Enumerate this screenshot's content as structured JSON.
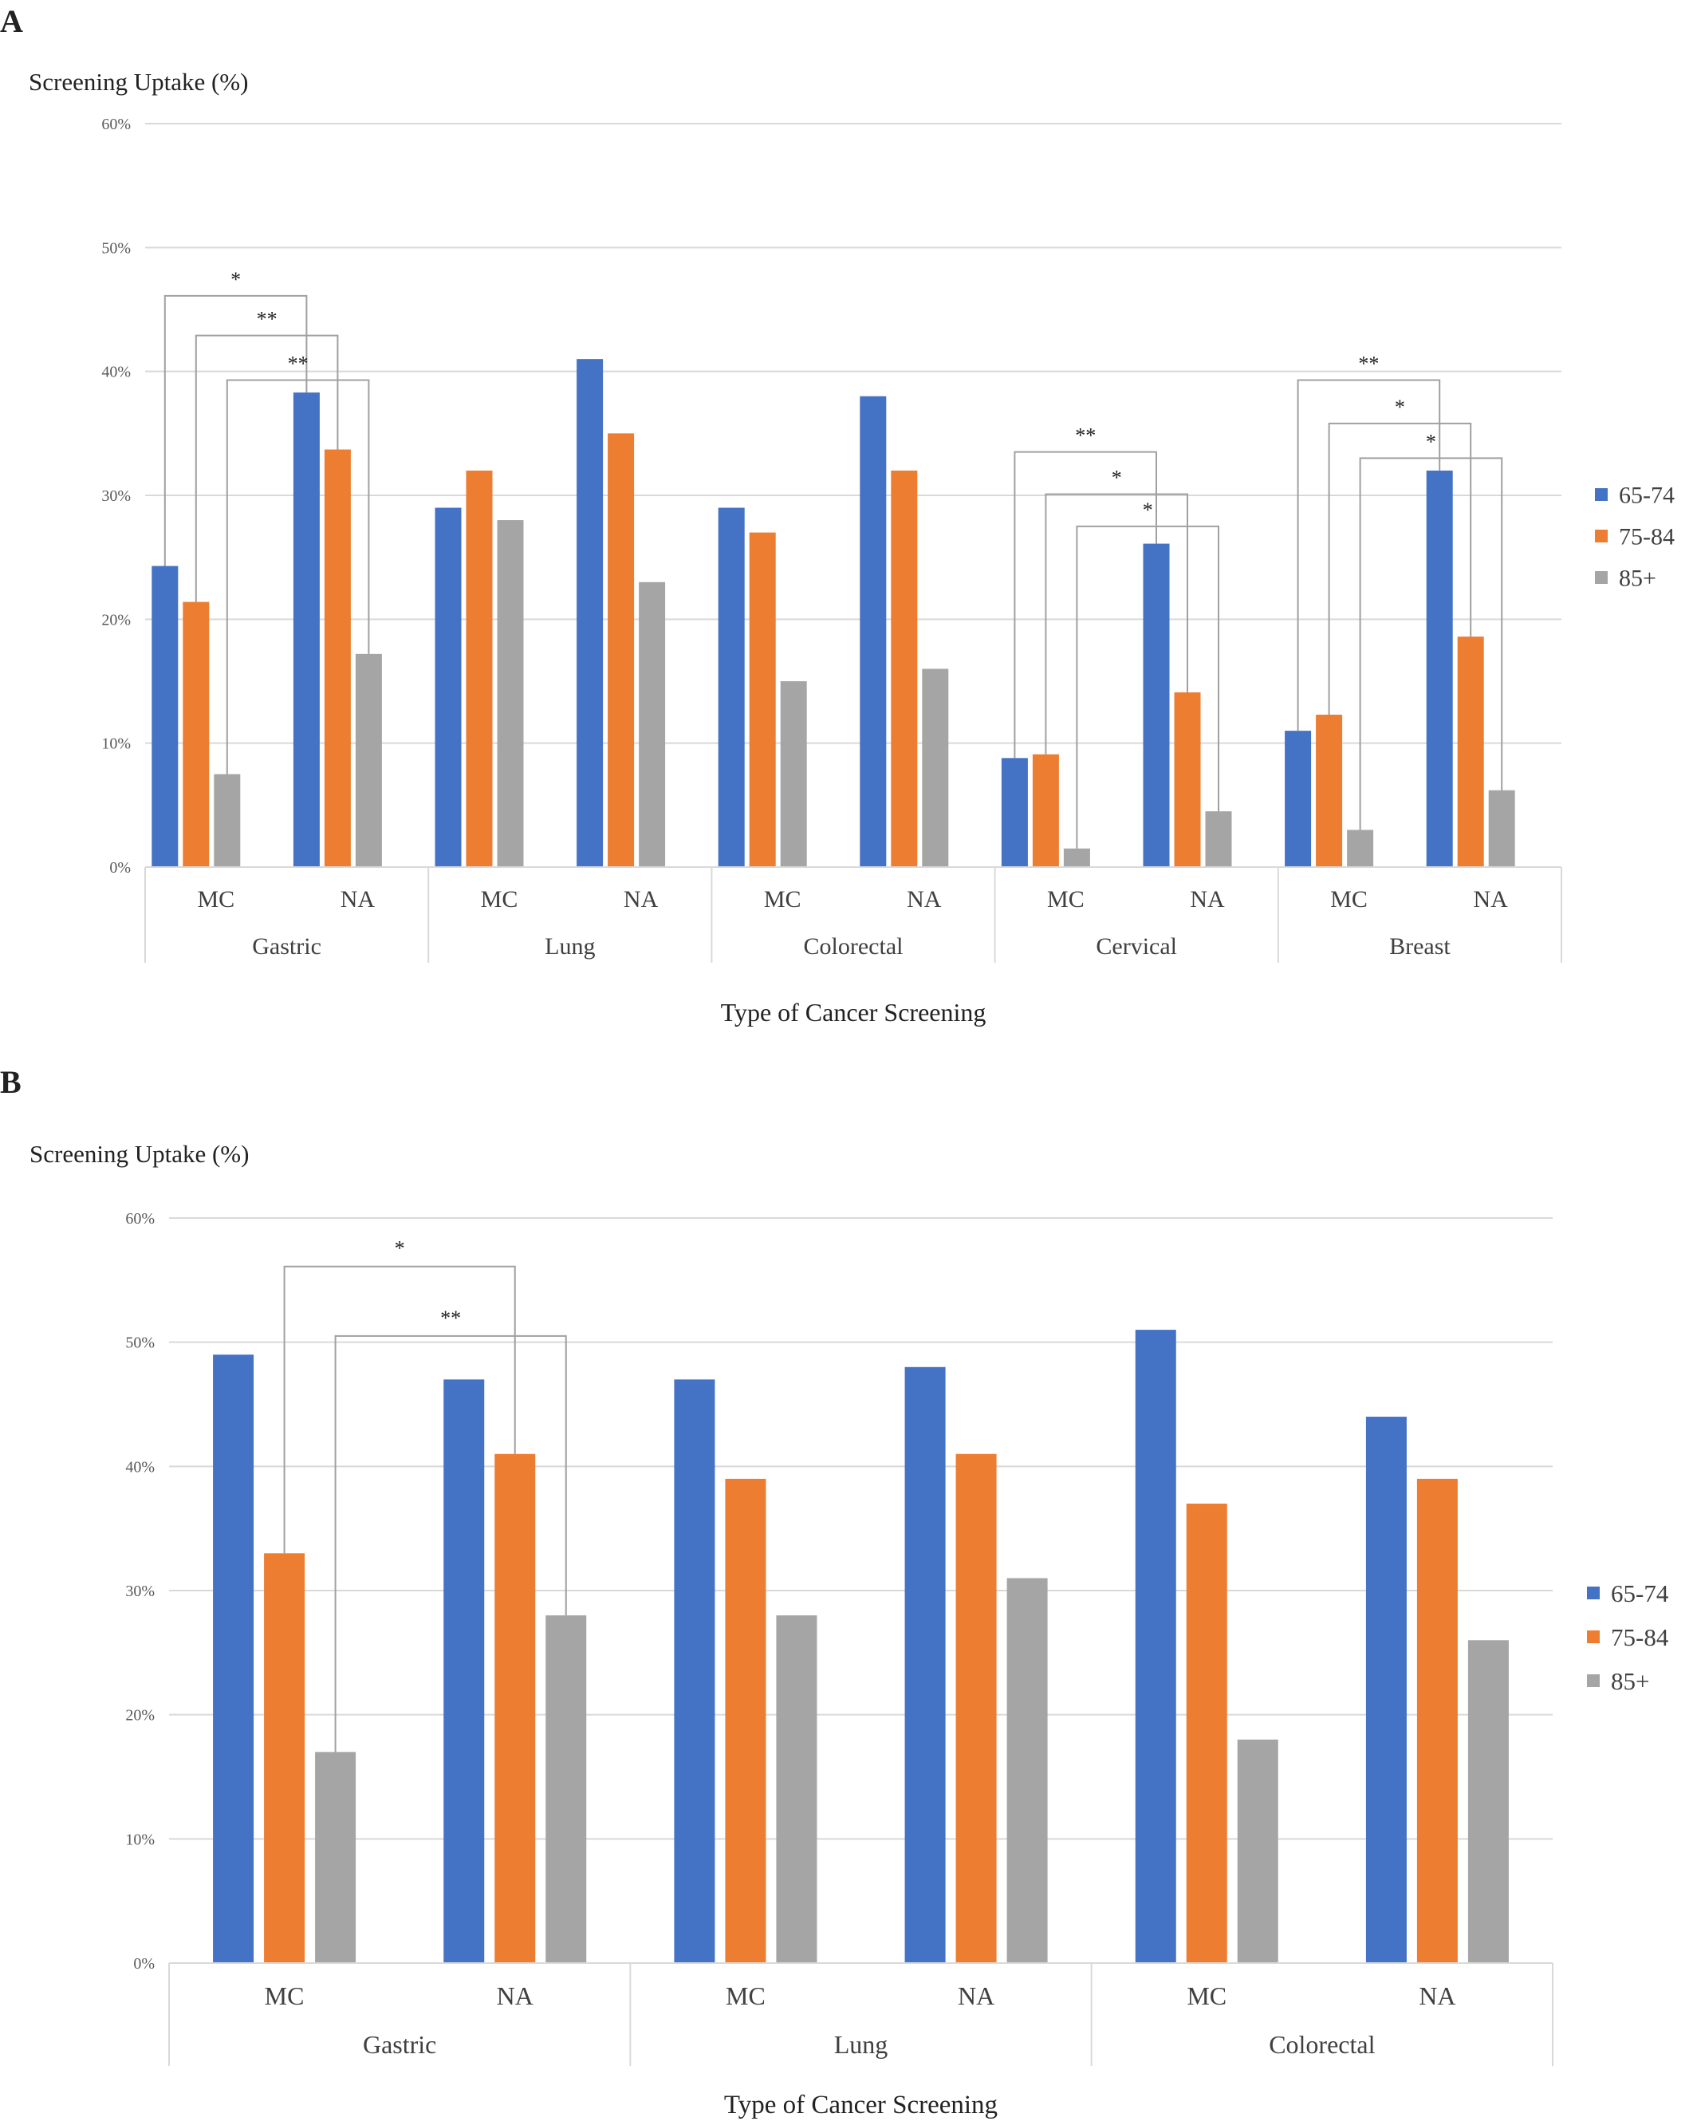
{
  "colors": {
    "series_65_74": "#4472C4",
    "series_75_84": "#ED7D31",
    "series_85_plus": "#A5A5A5",
    "grid": "#D9D9D9",
    "bracket": "#A0A0A0",
    "text": "#222222",
    "tick_text": "#595959"
  },
  "chart_data": [
    {
      "panel_label": "A",
      "type": "bar",
      "ylabel": "Screening Uptake (%)",
      "xlabel": "Type of Cancer Screening",
      "ylim": [
        0,
        60
      ],
      "yticks": [
        "0%",
        "10%",
        "20%",
        "30%",
        "40%",
        "50%",
        "60%"
      ],
      "grid": true,
      "legend_position": "right",
      "groups": [
        "Gastric",
        "Lung",
        "Colorectal",
        "Cervical",
        "Breast"
      ],
      "subcategories": [
        "MC",
        "NA"
      ],
      "categories": [
        "MC",
        "NA",
        "MC",
        "NA",
        "MC",
        "NA",
        "MC",
        "NA",
        "MC",
        "NA"
      ],
      "series": [
        {
          "name": "65-74",
          "values": [
            24.3,
            38.3,
            29,
            41,
            29,
            38,
            8.8,
            26.1,
            11,
            32
          ]
        },
        {
          "name": "75-84",
          "values": [
            21.4,
            33.7,
            32,
            35,
            27,
            32,
            9.1,
            14.1,
            12.3,
            18.6
          ]
        },
        {
          "name": "85+",
          "values": [
            7.5,
            17.2,
            28,
            23,
            15,
            16,
            1.5,
            4.5,
            3,
            6.2
          ]
        }
      ],
      "significance": [
        {
          "label": "*",
          "from": [
            0,
            0
          ],
          "to": [
            1,
            0
          ],
          "level": 46.1
        },
        {
          "label": "**",
          "from": [
            0,
            1
          ],
          "to": [
            1,
            1
          ],
          "level": 42.9
        },
        {
          "label": "**",
          "from": [
            0,
            2
          ],
          "to": [
            1,
            2
          ],
          "level": 39.3
        },
        {
          "label": "**",
          "from": [
            6,
            0
          ],
          "to": [
            7,
            0
          ],
          "level": 33.5
        },
        {
          "label": "*",
          "from": [
            6,
            1
          ],
          "to": [
            7,
            1
          ],
          "level": 30.1
        },
        {
          "label": "*",
          "from": [
            6,
            2
          ],
          "to": [
            7,
            2
          ],
          "level": 27.5
        },
        {
          "label": "**",
          "from": [
            8,
            0
          ],
          "to": [
            9,
            0
          ],
          "level": 39.3
        },
        {
          "label": "*",
          "from": [
            8,
            1
          ],
          "to": [
            9,
            1
          ],
          "level": 35.8
        },
        {
          "label": "*",
          "from": [
            8,
            2
          ],
          "to": [
            9,
            2
          ],
          "level": 33.0
        }
      ]
    },
    {
      "panel_label": "B",
      "type": "bar",
      "ylabel": "Screening Uptake (%)",
      "xlabel": "Type of Cancer Screening",
      "ylim": [
        0,
        60
      ],
      "yticks": [
        "0%",
        "10%",
        "20%",
        "30%",
        "40%",
        "50%",
        "60%"
      ],
      "grid": true,
      "legend_position": "right",
      "groups": [
        "Gastric",
        "Lung",
        "Colorectal"
      ],
      "subcategories": [
        "MC",
        "NA"
      ],
      "categories": [
        "MC",
        "NA",
        "MC",
        "NA",
        "MC",
        "NA"
      ],
      "series": [
        {
          "name": "65-74",
          "values": [
            49,
            47,
            47,
            48,
            51,
            44
          ]
        },
        {
          "name": "75-84",
          "values": [
            33,
            41,
            39,
            41,
            37,
            39
          ]
        },
        {
          "name": "85+",
          "values": [
            17,
            28,
            28,
            31,
            18,
            26
          ]
        }
      ],
      "significance": [
        {
          "label": "*",
          "from": [
            0,
            1
          ],
          "to": [
            1,
            1
          ],
          "level": 56.1
        },
        {
          "label": "**",
          "from": [
            0,
            2
          ],
          "to": [
            1,
            2
          ],
          "level": 50.5
        }
      ]
    }
  ]
}
